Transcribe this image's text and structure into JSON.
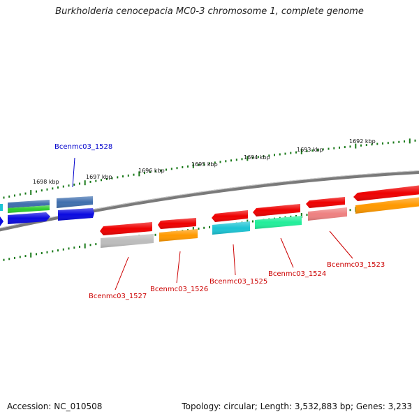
{
  "title": "Burkholderia cenocepacia MC0-3 chromosome 1, complete genome",
  "footer": {
    "accession": "Accession: NC_010508",
    "summary": "Topology: circular; Length: 3,532,883 bp; Genes: 3,233"
  },
  "ticks": [
    "1698 kbp",
    "1697 kbp",
    "1696 kbp",
    "1695 kbp",
    "1694 kbp",
    "1693 kbp",
    "1692 kbp"
  ],
  "genes": [
    {
      "label": "Bcenmc03_1528",
      "color": "#0000cc"
    },
    {
      "label": "Bcenmc03_1527",
      "color": "#cc0000"
    },
    {
      "label": "Bcenmc03_1526",
      "color": "#cc0000"
    },
    {
      "label": "Bcenmc03_1525",
      "color": "#cc0000"
    },
    {
      "label": "Bcenmc03_1524",
      "color": "#cc0000"
    },
    {
      "label": "Bcenmc03_1523",
      "color": "#cc0000"
    }
  ],
  "colors": {
    "backbone": "#808080",
    "ticks": "#1a7a1a",
    "red": "#ee0000",
    "blue": "#0a0ae0",
    "steel_blue": "#3f6fae",
    "green": "#2ecc2e",
    "cyan": "#1cc4d4",
    "mint": "#22ee9a",
    "orange": "#ff9900",
    "grey": "#bdbdbd",
    "pink": "#ee8080"
  }
}
